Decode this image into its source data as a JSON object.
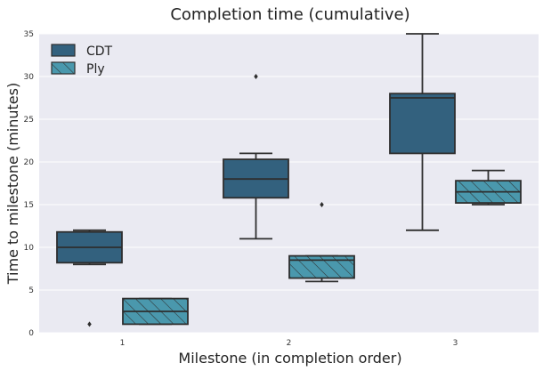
{
  "chart_data": {
    "type": "box",
    "title": "Completion time (cumulative)",
    "xlabel": "Milestone (in completion order)",
    "ylabel": "Time to milestone (minutes)",
    "categories": [
      "1",
      "2",
      "3"
    ],
    "ylim": [
      0,
      35
    ],
    "yticks": [
      0,
      5,
      10,
      15,
      20,
      25,
      30,
      35
    ],
    "grid": true,
    "legend_position": "top-left",
    "series": [
      {
        "name": "CDT",
        "color": "#33617e",
        "hatch": false,
        "boxes": [
          {
            "category": "1",
            "whisker_low": 8,
            "q1": 8.2,
            "median": 10,
            "q3": 11.8,
            "whisker_high": 12,
            "outliers": [
              1
            ]
          },
          {
            "category": "2",
            "whisker_low": 11,
            "q1": 15.8,
            "median": 18,
            "q3": 20.3,
            "whisker_high": 21,
            "outliers": [
              30
            ]
          },
          {
            "category": "3",
            "whisker_low": 12,
            "q1": 21,
            "median": 27.5,
            "q3": 28,
            "whisker_high": 35,
            "outliers": []
          }
        ]
      },
      {
        "name": "Ply",
        "color": "#4a98ad",
        "hatch": true,
        "boxes": [
          {
            "category": "1",
            "whisker_low": 1,
            "q1": 1,
            "median": 2.5,
            "q3": 4,
            "whisker_high": 4,
            "outliers": []
          },
          {
            "category": "2",
            "whisker_low": 6,
            "q1": 6.4,
            "median": 8.5,
            "q3": 9,
            "whisker_high": 9,
            "outliers": [
              15
            ]
          },
          {
            "category": "3",
            "whisker_low": 15,
            "q1": 15.2,
            "median": 16.5,
            "q3": 17.8,
            "whisker_high": 19,
            "outliers": []
          }
        ]
      }
    ]
  }
}
